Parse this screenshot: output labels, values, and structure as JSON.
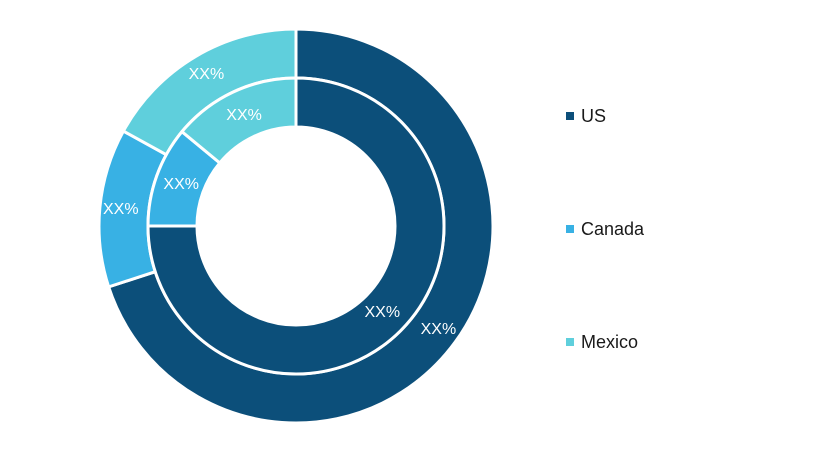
{
  "chart_data": {
    "type": "pie",
    "categories": [
      "US",
      "Canada",
      "Mexico"
    ],
    "series": [
      {
        "ring": "outer",
        "values": [
          70,
          13,
          17
        ],
        "labels": [
          "XX%",
          "XX%",
          "XX%"
        ]
      },
      {
        "ring": "inner",
        "values": [
          75,
          11,
          14
        ],
        "labels": [
          "XX%",
          "XX%",
          "XX%"
        ]
      }
    ],
    "colors": [
      "#0c4f7a",
      "#38b1e4",
      "#5fcfdc"
    ],
    "legend": {
      "position": "right",
      "items": [
        "US",
        "Canada",
        "Mexico"
      ]
    }
  }
}
